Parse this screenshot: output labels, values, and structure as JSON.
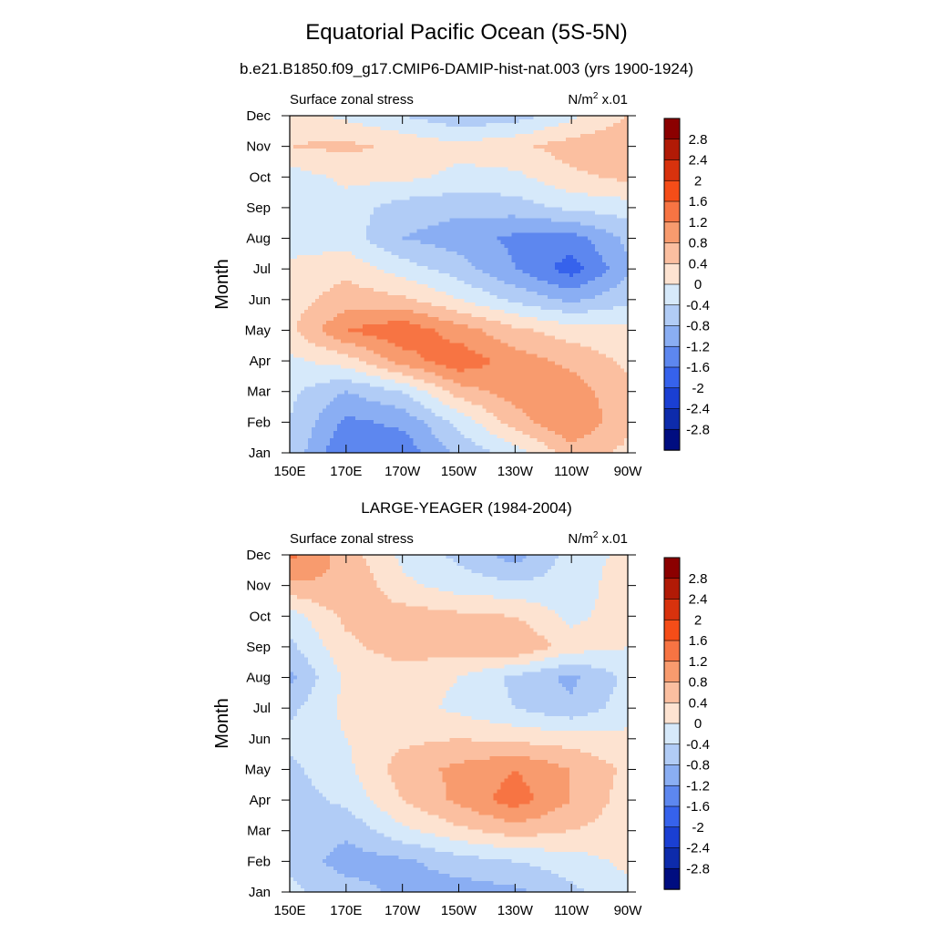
{
  "figure": {
    "title": "Equatorial Pacific Ocean (5S-5N)"
  },
  "colorbar": {
    "levels": [
      "2.8",
      "2.4",
      "2",
      "1.6",
      "1.2",
      "0.8",
      "0.4",
      "0",
      "-0.4",
      "-0.8",
      "-1.2",
      "-1.6",
      "-2",
      "-2.4",
      "-2.8"
    ],
    "colors": [
      "#8b0000",
      "#b11a06",
      "#d8320d",
      "#f54d18",
      "#f77443",
      "#f89b6e",
      "#fbbfa0",
      "#fde3d1",
      "#d6e9fa",
      "#b1ccf6",
      "#8aaef3",
      "#5d87ef",
      "#3662ec",
      "#1a3fd3",
      "#0d2bab",
      "#000d80"
    ]
  },
  "panels": [
    {
      "id": "model",
      "panel_title": "b.e21.B1850.f09_g17.CMIP6-DAMIP-hist-nat.003 (yrs 1900-1924)",
      "left_string": "Surface zonal stress",
      "right_string": "N/m",
      "right_sup": "2",
      "right_suffix": " x.01",
      "ylabel": "Month",
      "chart_data": {
        "type": "heatmap",
        "title": "b.e21.B1850.f09_g17.CMIP6-DAMIP-hist-nat.003 (yrs 1900-1924)",
        "xlabel": "",
        "ylabel": "Month",
        "units": "N/m2 x.01",
        "x_ticks": [
          "150E",
          "170E",
          "170W",
          "150W",
          "130W",
          "110W",
          "90W"
        ],
        "x_tick_lon": [
          150,
          170,
          190,
          210,
          230,
          250,
          270
        ],
        "xlim": [
          150,
          270
        ],
        "y_ticks": [
          "Jan",
          "Feb",
          "Mar",
          "Apr",
          "May",
          "Jun",
          "Jul",
          "Aug",
          "Sep",
          "Oct",
          "Nov",
          "Dec"
        ],
        "grid_lon": [
          150,
          170,
          190,
          210,
          230,
          250,
          270
        ],
        "values": [
          [
            -0.5,
            -1.6,
            -1.5,
            -0.7,
            -0.2,
            0.6,
            0.3
          ],
          [
            -0.4,
            -1.3,
            -1.1,
            -0.3,
            0.6,
            1.2,
            0.5
          ],
          [
            -0.3,
            -0.8,
            -0.4,
            0.6,
            1.0,
            1.0,
            0.5
          ],
          [
            -0.1,
            0.2,
            1.0,
            1.5,
            1.0,
            0.7,
            0.3
          ],
          [
            0.3,
            1.2,
            1.5,
            1.0,
            0.5,
            0.2,
            0.1
          ],
          [
            0.2,
            0.6,
            0.5,
            0.0,
            -0.5,
            -0.9,
            -0.5
          ],
          [
            0.1,
            0.3,
            -0.2,
            -0.6,
            -1.2,
            -1.8,
            -0.9
          ],
          [
            -0.2,
            -0.2,
            -0.8,
            -1.0,
            -1.3,
            -1.4,
            -0.7
          ],
          [
            -0.3,
            -0.2,
            -0.6,
            -0.7,
            -0.6,
            -0.3,
            -0.2
          ],
          [
            -0.2,
            0.1,
            0.1,
            -0.1,
            -0.1,
            0.3,
            0.5
          ],
          [
            0.4,
            0.5,
            0.3,
            0.1,
            0.3,
            0.6,
            0.7
          ],
          [
            0.2,
            -0.1,
            -0.4,
            -0.7,
            -0.6,
            -0.1,
            0.4
          ]
        ]
      }
    },
    {
      "id": "obs",
      "panel_title": "LARGE-YEAGER (1984-2004)",
      "left_string": "Surface zonal stress",
      "right_string": "N/m",
      "right_sup": "2",
      "right_suffix": " x.01",
      "ylabel": "Month",
      "chart_data": {
        "type": "heatmap",
        "title": "LARGE-YEAGER (1984-2004)",
        "xlabel": "",
        "ylabel": "Month",
        "units": "N/m2 x.01",
        "x_ticks": [
          "150E",
          "170E",
          "170W",
          "150W",
          "130W",
          "110W",
          "90W"
        ],
        "x_tick_lon": [
          150,
          170,
          190,
          210,
          230,
          250,
          270
        ],
        "xlim": [
          150,
          270
        ],
        "y_ticks": [
          "Jan",
          "Feb",
          "Mar",
          "Apr",
          "May",
          "Jun",
          "Jul",
          "Aug",
          "Sep",
          "Oct",
          "Nov",
          "Dec"
        ],
        "grid_lon": [
          150,
          170,
          190,
          210,
          230,
          250,
          270
        ],
        "values": [
          [
            -0.3,
            -0.6,
            -0.9,
            -1.0,
            -0.9,
            -0.5,
            -0.1
          ],
          [
            -0.5,
            -1.0,
            -0.9,
            -0.6,
            -0.4,
            -0.2,
            0.1
          ],
          [
            -0.6,
            -0.7,
            -0.1,
            0.3,
            0.6,
            0.4,
            0.2
          ],
          [
            -0.6,
            -0.3,
            0.4,
            0.9,
            1.4,
            0.8,
            0.2
          ],
          [
            -0.5,
            -0.1,
            0.6,
            0.9,
            1.2,
            0.8,
            0.3
          ],
          [
            -0.3,
            0.0,
            0.3,
            0.4,
            0.3,
            0.2,
            0.1
          ],
          [
            -0.5,
            0.1,
            0.2,
            -0.1,
            -0.4,
            -0.7,
            -0.2
          ],
          [
            -0.9,
            0.1,
            0.2,
            0.0,
            -0.5,
            -0.9,
            -0.3
          ],
          [
            -0.5,
            0.3,
            0.6,
            0.6,
            0.8,
            0.2,
            0.0
          ],
          [
            -0.2,
            0.5,
            0.6,
            0.5,
            0.4,
            -0.1,
            0.2
          ],
          [
            0.7,
            0.8,
            0.1,
            -0.2,
            -0.3,
            -0.3,
            0.3
          ],
          [
            1.3,
            0.6,
            -0.1,
            -0.5,
            -1.0,
            -0.2,
            0.1
          ]
        ]
      }
    }
  ]
}
